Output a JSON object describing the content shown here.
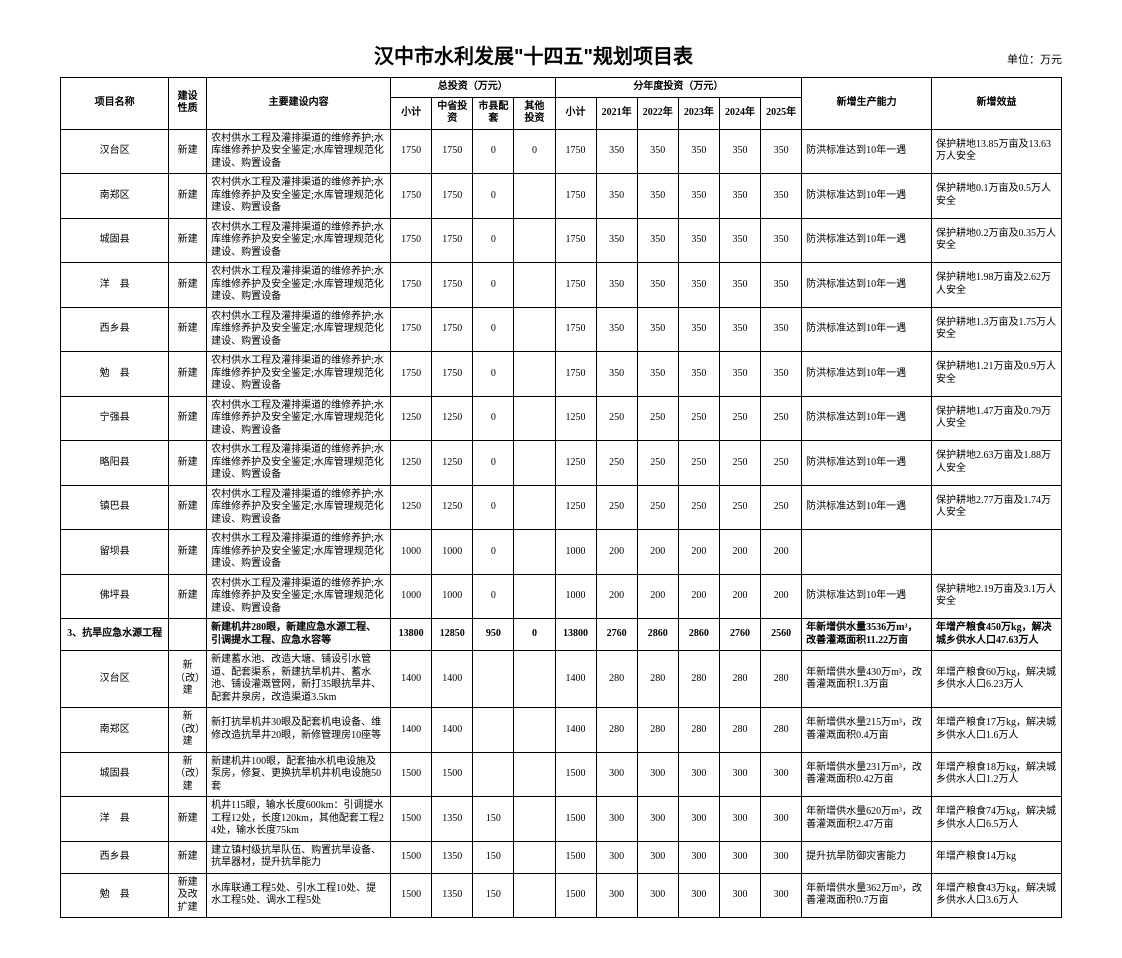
{
  "title": "汉中市水利发展\"十四五\"规划项目表",
  "unit": "单位：万元",
  "headers": {
    "name": "项目名称",
    "nature": "建设性质",
    "content": "主要建设内容",
    "total_group": "总投资（万元）",
    "sub_total": "小计",
    "prov": "中省投资",
    "county": "市县配套",
    "other": "其他 投资",
    "year_group": "分年度投资（万元）",
    "y_sub": "小计",
    "y2021": "2021年",
    "y2022": "2022年",
    "y2023": "2023年",
    "y2024": "2024年",
    "y2025": "2025年",
    "capacity": "新增生产能力",
    "benefit": "新增效益"
  },
  "rows": [
    {
      "name": "汉台区",
      "nature": "新建",
      "content": "农村供水工程及灌排渠道的维修养护;水库维修养护及安全鉴定;水库管理规范化建设、购置设备",
      "t1": "1750",
      "t2": "1750",
      "t3": "0",
      "t4": "0",
      "y0": "1750",
      "y1": "350",
      "y2": "350",
      "y3": "350",
      "y4": "350",
      "y5": "350",
      "cap": "防洪标准达到10年一遇",
      "ben": "保护耕地13.85万亩及13.63万人安全"
    },
    {
      "name": "南郑区",
      "nature": "新建",
      "content": "农村供水工程及灌排渠道的维修养护;水库维修养护及安全鉴定;水库管理规范化建设、购置设备",
      "t1": "1750",
      "t2": "1750",
      "t3": "0",
      "t4": "",
      "y0": "1750",
      "y1": "350",
      "y2": "350",
      "y3": "350",
      "y4": "350",
      "y5": "350",
      "cap": "防洪标准达到10年一遇",
      "ben": "保护耕地0.1万亩及0.5万人安全"
    },
    {
      "name": "城固县",
      "nature": "新建",
      "content": "农村供水工程及灌排渠道的维修养护;水库维修养护及安全鉴定;水库管理规范化建设、购置设备",
      "t1": "1750",
      "t2": "1750",
      "t3": "0",
      "t4": "",
      "y0": "1750",
      "y1": "350",
      "y2": "350",
      "y3": "350",
      "y4": "350",
      "y5": "350",
      "cap": "防洪标准达到10年一遇",
      "ben": "保护耕地0.2万亩及0.35万人安全"
    },
    {
      "name": "洋　县",
      "nature": "新建",
      "content": "农村供水工程及灌排渠道的维修养护;水库维修养护及安全鉴定;水库管理规范化建设、购置设备",
      "t1": "1750",
      "t2": "1750",
      "t3": "0",
      "t4": "",
      "y0": "1750",
      "y1": "350",
      "y2": "350",
      "y3": "350",
      "y4": "350",
      "y5": "350",
      "cap": "防洪标准达到10年一遇",
      "ben": "保护耕地1.98万亩及2.62万人安全"
    },
    {
      "name": "西乡县",
      "nature": "新建",
      "content": "农村供水工程及灌排渠道的维修养护;水库维修养护及安全鉴定;水库管理规范化建设、购置设备",
      "t1": "1750",
      "t2": "1750",
      "t3": "0",
      "t4": "",
      "y0": "1750",
      "y1": "350",
      "y2": "350",
      "y3": "350",
      "y4": "350",
      "y5": "350",
      "cap": "防洪标准达到10年一遇",
      "ben": "保护耕地1.3万亩及1.75万人安全"
    },
    {
      "name": "勉　县",
      "nature": "新建",
      "content": "农村供水工程及灌排渠道的维修养护;水库维修养护及安全鉴定;水库管理规范化建设、购置设备",
      "t1": "1750",
      "t2": "1750",
      "t3": "0",
      "t4": "",
      "y0": "1750",
      "y1": "350",
      "y2": "350",
      "y3": "350",
      "y4": "350",
      "y5": "350",
      "cap": "防洪标准达到10年一遇",
      "ben": "保护耕地1.21万亩及0.9万人安全"
    },
    {
      "name": "宁强县",
      "nature": "新建",
      "content": "农村供水工程及灌排渠道的维修养护;水库维修养护及安全鉴定;水库管理规范化建设、购置设备",
      "t1": "1250",
      "t2": "1250",
      "t3": "0",
      "t4": "",
      "y0": "1250",
      "y1": "250",
      "y2": "250",
      "y3": "250",
      "y4": "250",
      "y5": "250",
      "cap": "防洪标准达到10年一遇",
      "ben": "保护耕地1.47万亩及0.79万人安全"
    },
    {
      "name": "略阳县",
      "nature": "新建",
      "content": "农村供水工程及灌排渠道的维修养护;水库维修养护及安全鉴定;水库管理规范化建设、购置设备",
      "t1": "1250",
      "t2": "1250",
      "t3": "0",
      "t4": "",
      "y0": "1250",
      "y1": "250",
      "y2": "250",
      "y3": "250",
      "y4": "250",
      "y5": "250",
      "cap": "防洪标准达到10年一遇",
      "ben": "保护耕地2.63万亩及1.88万人安全"
    },
    {
      "name": "镇巴县",
      "nature": "新建",
      "content": "农村供水工程及灌排渠道的维修养护;水库维修养护及安全鉴定;水库管理规范化建设、购置设备",
      "t1": "1250",
      "t2": "1250",
      "t3": "0",
      "t4": "",
      "y0": "1250",
      "y1": "250",
      "y2": "250",
      "y3": "250",
      "y4": "250",
      "y5": "250",
      "cap": "防洪标准达到10年一遇",
      "ben": "保护耕地2.77万亩及1.74万人安全"
    },
    {
      "name": "留坝县",
      "nature": "新建",
      "content": "农村供水工程及灌排渠道的维修养护;水库维修养护及安全鉴定;水库管理规范化建设、购置设备",
      "t1": "1000",
      "t2": "1000",
      "t3": "0",
      "t4": "",
      "y0": "1000",
      "y1": "200",
      "y2": "200",
      "y3": "200",
      "y4": "200",
      "y5": "200",
      "cap": "",
      "ben": ""
    },
    {
      "name": "佛坪县",
      "nature": "新建",
      "content": "农村供水工程及灌排渠道的维修养护;水库维修养护及安全鉴定;水库管理规范化建设、购置设备",
      "t1": "1000",
      "t2": "1000",
      "t3": "0",
      "t4": "",
      "y0": "1000",
      "y1": "200",
      "y2": "200",
      "y3": "200",
      "y4": "200",
      "y5": "200",
      "cap": "防洪标准达到10年一遇",
      "ben": "保护耕地2.19万亩及3.1万人安全"
    },
    {
      "section": true,
      "name": "3、抗旱应急水源工程",
      "nature": "",
      "content": "新建机井280眼，新建应急水源工程、引调提水工程、应急水容等",
      "t1": "13800",
      "t2": "12850",
      "t3": "950",
      "t4": "0",
      "y0": "13800",
      "y1": "2760",
      "y2": "2860",
      "y3": "2860",
      "y4": "2760",
      "y5": "2560",
      "cap": "年新增供水量3536万m³，改善灌溉面积11.22万亩",
      "ben": "年增产粮食450万kg，解决城乡供水人口47.63万人"
    },
    {
      "name": "汉台区",
      "nature": "新（改）建",
      "content": "新建蓄水池、改造大塘、铺设引水管道、配套渠系，新建抗旱机井、蓄水池、铺设灌溉管网，新打35眼抗旱井、配套井泉房，改造渠道3.5km",
      "t1": "1400",
      "t2": "1400",
      "t3": "",
      "t4": "",
      "y0": "1400",
      "y1": "280",
      "y2": "280",
      "y3": "280",
      "y4": "280",
      "y5": "280",
      "cap": "年新增供水量430万m³，改善灌溉面积1.3万亩",
      "ben": "年增产粮食60万kg，解决城乡供水人口6.23万人"
    },
    {
      "name": "南郑区",
      "nature": "新（改）建",
      "content": "新打抗旱机井30眼及配套机电设备、维修改造抗旱井20眼，新修管理房10座等",
      "t1": "1400",
      "t2": "1400",
      "t3": "",
      "t4": "",
      "y0": "1400",
      "y1": "280",
      "y2": "280",
      "y3": "280",
      "y4": "280",
      "y5": "280",
      "cap": "年新增供水量215万m³，改善灌溉面积0.4万亩",
      "ben": "年增产粮食17万kg，解决城乡供水人口1.6万人"
    },
    {
      "name": "城固县",
      "nature": "新（改）建",
      "content": "新建机井100眼，配套抽水机电设施及泵房，修复、更换抗旱机井机电设施50套",
      "t1": "1500",
      "t2": "1500",
      "t3": "",
      "t4": "",
      "y0": "1500",
      "y1": "300",
      "y2": "300",
      "y3": "300",
      "y4": "300",
      "y5": "300",
      "cap": "年新增供水量231万m³，改善灌溉面积0.42万亩",
      "ben": "年增产粮食18万kg，解决城乡供水人口1.2万人"
    },
    {
      "name": "洋　县",
      "nature": "新建",
      "content": "机井115眼，输水长度600km：引调提水工程12处，长度120km，其他配套工程24处，输水长度75km",
      "t1": "1500",
      "t2": "1350",
      "t3": "150",
      "t4": "",
      "y0": "1500",
      "y1": "300",
      "y2": "300",
      "y3": "300",
      "y4": "300",
      "y5": "300",
      "cap": "年新增供水量620万m³，改善灌溉面积2.47万亩",
      "ben": "年增产粮食74万kg，解决城乡供水人口6.5万人"
    },
    {
      "name": "西乡县",
      "nature": "新建",
      "content": "建立镇村级抗旱队伍、购置抗旱设备、抗旱器材，提升抗旱能力",
      "t1": "1500",
      "t2": "1350",
      "t3": "150",
      "t4": "",
      "y0": "1500",
      "y1": "300",
      "y2": "300",
      "y3": "300",
      "y4": "300",
      "y5": "300",
      "cap": "提升抗旱防御灾害能力",
      "ben": "年增产粮食14万kg"
    },
    {
      "name": "勉　县",
      "nature": "新建及改扩建",
      "content": "水库联通工程5处、引水工程10处、提水工程5处、调水工程5处",
      "t1": "1500",
      "t2": "1350",
      "t3": "150",
      "t4": "",
      "y0": "1500",
      "y1": "300",
      "y2": "300",
      "y3": "300",
      "y4": "300",
      "y5": "300",
      "cap": "年新增供水量362万m³，改善灌溉面积0.7万亩",
      "ben": "年增产粮食43万kg，解决城乡供水人口3.6万人"
    }
  ]
}
